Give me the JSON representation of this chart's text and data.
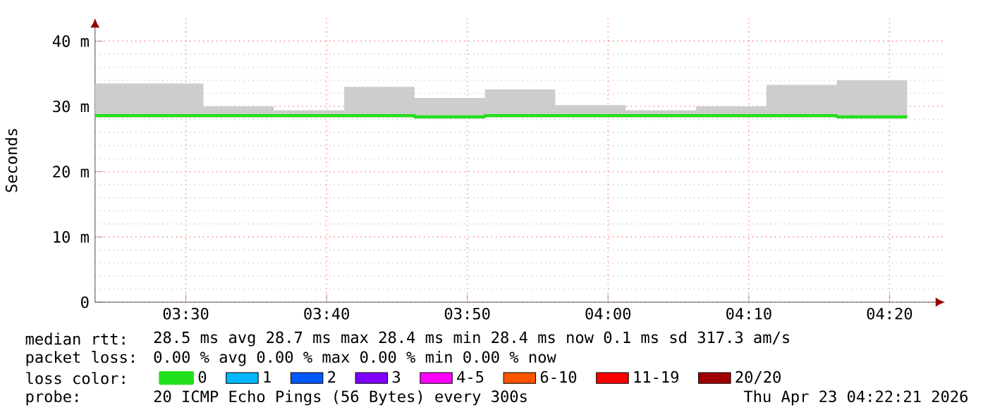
{
  "chart_data": {
    "type": "step",
    "ylabel": "Seconds",
    "legend_title": "loss color:",
    "x": [
      3.3925,
      3.4375,
      3.5208,
      3.6042,
      3.6875,
      3.7708,
      3.8542,
      3.9375,
      4.0208,
      4.1042,
      4.1875,
      4.2708,
      4.3542
    ],
    "series": [
      {
        "name": "0",
        "color": "#22e01a",
        "values": [
          28.6,
          28.6,
          28.6,
          28.6,
          28.6,
          28.4,
          28.6,
          28.6,
          28.6,
          28.6,
          28.6,
          28.4,
          28.4
        ],
        "lower": [
          28.3,
          28.3,
          28.3,
          28.3,
          28.3,
          28.1,
          28.3,
          28.3,
          28.3,
          28.3,
          28.3,
          28.1,
          28.1
        ],
        "upper": [
          33.5,
          33.5,
          30.0,
          29.4,
          33.0,
          31.3,
          32.6,
          30.2,
          29.4,
          30.0,
          33.3,
          34.0,
          34.0
        ]
      },
      {
        "name": "1",
        "color": "#00b8ff",
        "values": [
          null,
          null,
          null,
          null,
          null,
          null,
          null,
          null,
          null,
          null,
          null,
          null,
          null
        ]
      },
      {
        "name": "2",
        "color": "#0059ff",
        "values": [
          null,
          null,
          null,
          null,
          null,
          null,
          null,
          null,
          null,
          null,
          null,
          null,
          null
        ]
      },
      {
        "name": "3",
        "color": "#7e00ff",
        "values": [
          null,
          null,
          null,
          null,
          null,
          null,
          null,
          null,
          null,
          null,
          null,
          null,
          null
        ]
      },
      {
        "name": "4-5",
        "color": "#ff00ff",
        "values": [
          null,
          null,
          null,
          null,
          null,
          null,
          null,
          null,
          null,
          null,
          null,
          null,
          null
        ]
      },
      {
        "name": "6-10",
        "color": "#ff5500",
        "values": [
          null,
          null,
          null,
          null,
          null,
          null,
          null,
          null,
          null,
          null,
          null,
          null,
          null
        ]
      },
      {
        "name": "11-19",
        "color": "#ff0000",
        "values": [
          null,
          null,
          null,
          null,
          null,
          null,
          null,
          null,
          null,
          null,
          null,
          null,
          null
        ]
      },
      {
        "name": "20/20",
        "color": "#a10000",
        "values": [
          null,
          null,
          null,
          null,
          null,
          null,
          null,
          null,
          null,
          null,
          null,
          null,
          null
        ]
      }
    ],
    "xlim": [
      3.3925,
      4.399
    ],
    "xticks": [
      {
        "value": 3.5,
        "label": "03:30"
      },
      {
        "value": 3.6667,
        "label": "03:40"
      },
      {
        "value": 3.8333,
        "label": "03:50"
      },
      {
        "value": 4.0,
        "label": "04:00"
      },
      {
        "value": 4.1667,
        "label": "04:10"
      },
      {
        "value": 4.3333,
        "label": "04:20"
      }
    ],
    "ylim": [
      0,
      43.5
    ],
    "yticks": [
      0,
      {
        "value": 10,
        "label": "10 m"
      },
      {
        "value": 20,
        "label": "20 m"
      },
      {
        "value": 30,
        "label": "30 m"
      },
      {
        "value": 40,
        "label": "40 m"
      }
    ],
    "grid": true,
    "legend": "bottom",
    "annotations": [
      "median rtt:",
      "28.5 ms avg  28.7 ms max  28.4 ms min  28.4 ms now  0.1 ms sd  317.3  am/s",
      "packet loss:",
      "0.00 % avg  0.00 % max  0.00 % min  0.00 % now",
      "probe:",
      "20 ICMP Echo Pings (56 Bytes) every 300s",
      "Thu Apr 23 04:22:21 2026"
    ]
  }
}
